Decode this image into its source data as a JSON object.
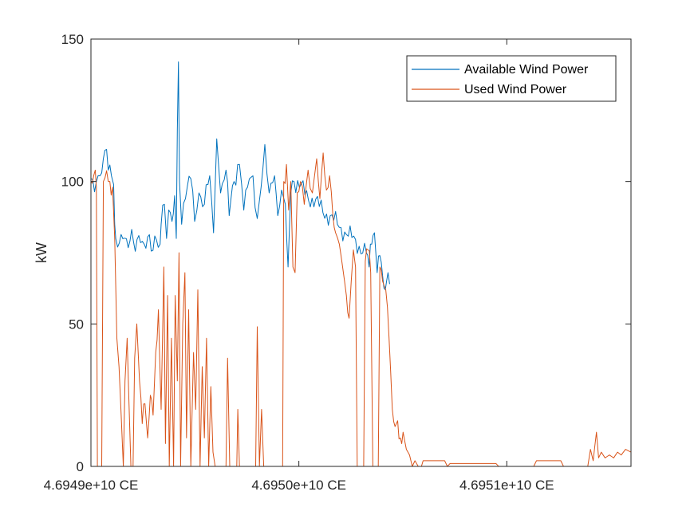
{
  "chart_data": {
    "type": "line",
    "title": "",
    "xlabel": "",
    "ylabel": "kW",
    "xlim": [
      0,
      100
    ],
    "ylim": [
      0,
      150
    ],
    "y_ticks": [
      0,
      50,
      100,
      150
    ],
    "x_ticks": [
      {
        "x": 0,
        "label": "4.6949e+10 CE"
      },
      {
        "x": 38.5,
        "label": "4.6950e+10 CE"
      },
      {
        "x": 77,
        "label": "4.6951e+10 CE"
      }
    ],
    "grid": false,
    "legend_position": "top-right",
    "series": [
      {
        "name": "Available Wind Power",
        "color": "#0072BD",
        "points": [
          [
            0,
            101
          ],
          [
            1,
            100
          ],
          [
            2,
            103
          ],
          [
            2.6,
            111
          ],
          [
            3.2,
            104
          ],
          [
            3.8,
            102
          ],
          [
            4.2,
            99
          ],
          [
            4.4,
            85
          ],
          [
            4.6,
            80
          ],
          [
            12.8,
            78
          ],
          [
            13,
            85
          ],
          [
            13.6,
            92
          ],
          [
            14,
            80
          ],
          [
            14.4,
            90
          ],
          [
            15,
            86
          ],
          [
            15.5,
            95
          ],
          [
            15.8,
            80
          ],
          [
            16,
            118
          ],
          [
            16.2,
            142
          ],
          [
            16.4,
            100
          ],
          [
            16.8,
            85
          ],
          [
            17.5,
            94
          ],
          [
            18.5,
            101
          ],
          [
            19.2,
            86
          ],
          [
            20,
            96
          ],
          [
            21,
            92
          ],
          [
            22,
            102
          ],
          [
            22.7,
            82
          ],
          [
            23.3,
            115
          ],
          [
            24,
            96
          ],
          [
            25,
            104
          ],
          [
            25.6,
            88
          ],
          [
            26.5,
            100
          ],
          [
            27.5,
            106
          ],
          [
            28.3,
            90
          ],
          [
            29,
            98
          ],
          [
            30,
            102
          ],
          [
            30.8,
            87
          ],
          [
            31.5,
            98
          ],
          [
            32.2,
            113
          ],
          [
            33,
            96
          ],
          [
            34,
            102
          ],
          [
            34.6,
            88
          ],
          [
            35.3,
            97
          ],
          [
            36,
            92
          ],
          [
            36.5,
            70
          ],
          [
            37,
            96
          ],
          [
            37.6,
            100
          ],
          [
            51,
            75
          ],
          [
            51.5,
            70
          ],
          [
            52,
            78
          ],
          [
            52.5,
            82
          ],
          [
            53,
            68
          ],
          [
            53.5,
            74
          ],
          [
            54,
            67
          ],
          [
            54.5,
            62
          ],
          [
            55,
            68
          ],
          [
            55.3,
            64
          ]
        ]
      },
      {
        "name": "Used Wind Power",
        "color": "#D95319",
        "points": [
          [
            0,
            100
          ],
          [
            0.5,
            102
          ],
          [
            0.8,
            104
          ],
          [
            1,
            98
          ],
          [
            1.2,
            0
          ],
          [
            2,
            0
          ],
          [
            2.3,
            100
          ],
          [
            3.5,
            100
          ],
          [
            4,
            98
          ],
          [
            4.4,
            80
          ],
          [
            4.8,
            45
          ],
          [
            5.2,
            35
          ],
          [
            5.6,
            18
          ],
          [
            6,
            0
          ],
          [
            6.3,
            30
          ],
          [
            6.7,
            45
          ],
          [
            7,
            25
          ],
          [
            7.4,
            0
          ],
          [
            7.8,
            0
          ],
          [
            8.1,
            38
          ],
          [
            8.5,
            50
          ],
          [
            9,
            30
          ],
          [
            9.5,
            15
          ],
          [
            10,
            22
          ],
          [
            10.5,
            10
          ],
          [
            11,
            25
          ],
          [
            11.5,
            18
          ],
          [
            12,
            40
          ],
          [
            12.5,
            55
          ],
          [
            13,
            20
          ],
          [
            13.5,
            70
          ],
          [
            13.8,
            8
          ],
          [
            14.2,
            60
          ],
          [
            14.5,
            0
          ],
          [
            14.9,
            45
          ],
          [
            15.3,
            0
          ],
          [
            15.6,
            60
          ],
          [
            16,
            30
          ],
          [
            16.3,
            75
          ],
          [
            16.6,
            0
          ],
          [
            17,
            50
          ],
          [
            17.4,
            68
          ],
          [
            17.7,
            10
          ],
          [
            18.1,
            55
          ],
          [
            18.5,
            0
          ],
          [
            19,
            40
          ],
          [
            19.4,
            20
          ],
          [
            19.8,
            62
          ],
          [
            20.2,
            0
          ],
          [
            20.6,
            35
          ],
          [
            21,
            10
          ],
          [
            21.4,
            45
          ],
          [
            21.8,
            0
          ],
          [
            22.2,
            28
          ],
          [
            22.6,
            5
          ],
          [
            23,
            0
          ],
          [
            25,
            0
          ],
          [
            25.3,
            38
          ],
          [
            25.7,
            0
          ],
          [
            27,
            0
          ],
          [
            27.2,
            20
          ],
          [
            27.5,
            0
          ],
          [
            30.5,
            0
          ],
          [
            30.8,
            49
          ],
          [
            31.2,
            0
          ],
          [
            31.6,
            20
          ],
          [
            32,
            0
          ],
          [
            35.5,
            0
          ],
          [
            35.7,
            100
          ],
          [
            36.2,
            106
          ],
          [
            36.6,
            90
          ],
          [
            37,
            100
          ],
          [
            37.4,
            70
          ],
          [
            37.8,
            68
          ],
          [
            38.2,
            96
          ],
          [
            38.8,
            100
          ],
          [
            39.5,
            92
          ],
          [
            40.2,
            104
          ],
          [
            41,
            96
          ],
          [
            41.8,
            108
          ],
          [
            42.4,
            94
          ],
          [
            43,
            110
          ],
          [
            43.6,
            97
          ],
          [
            44.2,
            102
          ],
          [
            44.8,
            88
          ],
          [
            45.3,
            82
          ],
          [
            46,
            78
          ],
          [
            46.6,
            70
          ],
          [
            47.3,
            60
          ],
          [
            47.8,
            52
          ],
          [
            48.2,
            65
          ],
          [
            48.6,
            76
          ],
          [
            49,
            70
          ],
          [
            49.3,
            0
          ],
          [
            50.5,
            0
          ],
          [
            50.8,
            72
          ],
          [
            51.3,
            76
          ],
          [
            51.8,
            68
          ],
          [
            52.2,
            0
          ],
          [
            53.2,
            0
          ],
          [
            53.5,
            70
          ],
          [
            54,
            65
          ],
          [
            54.6,
            62
          ],
          [
            55.2,
            45
          ],
          [
            55.8,
            20
          ],
          [
            56.3,
            14
          ],
          [
            56.8,
            16
          ],
          [
            57.3,
            10
          ],
          [
            57.8,
            12
          ],
          [
            58.4,
            6
          ],
          [
            59,
            4
          ],
          [
            59.5,
            0
          ],
          [
            60,
            2
          ],
          [
            60.6,
            0
          ],
          [
            61.2,
            0
          ],
          [
            61.5,
            2
          ],
          [
            65.5,
            2
          ],
          [
            66,
            0
          ],
          [
            66.5,
            1
          ],
          [
            75,
            1
          ],
          [
            75.5,
            0
          ],
          [
            82,
            0
          ],
          [
            82.5,
            2
          ],
          [
            87,
            2
          ],
          [
            87.5,
            0
          ],
          [
            92,
            0
          ],
          [
            92.5,
            6
          ],
          [
            93,
            2
          ],
          [
            93.6,
            12
          ],
          [
            94,
            3
          ],
          [
            94.5,
            5
          ],
          [
            95.2,
            3
          ],
          [
            96,
            4
          ],
          [
            96.8,
            3
          ],
          [
            97.5,
            5
          ],
          [
            98.2,
            4
          ],
          [
            99,
            6
          ],
          [
            100,
            5
          ]
        ]
      }
    ]
  }
}
